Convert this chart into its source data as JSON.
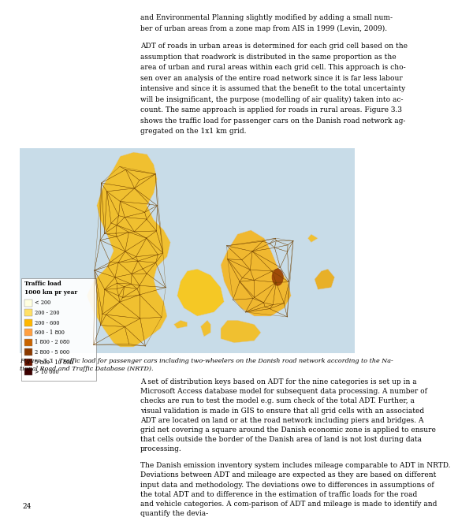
{
  "page_number": "24",
  "top_text_lines": [
    "and Environmental Planning slightly modified by adding a small num-",
    "ber of urban areas from a zone map from AIS in 1999 (Levin, 2009).",
    "",
    "ADT of roads in urban areas is determined for each grid cell based on the",
    "assumption that roadwork is distributed in the same proportion as the",
    "area of urban and rural areas within each grid cell. This approach is cho-",
    "sen over an analysis of the entire road network since it is far less labour",
    "intensive and since it is assumed that the benefit to the total uncertainty",
    "will be insignificant, the purpose (modelling of air quality) taken into ac-",
    "count. The same approach is applied for roads in rural areas. Figure 3.3",
    "shows the traffic load for passenger cars on the Danish road network ag-",
    "gregated on the 1x1 km grid."
  ],
  "legend_title1": "Traffic load",
  "legend_title2": "1000 km pr year",
  "legend_entries": [
    {
      "label": "< 200",
      "color": "#FFFFE0"
    },
    {
      "label": "200 - 200",
      "color": "#FFE066"
    },
    {
      "label": "200 - 600",
      "color": "#FFB700"
    },
    {
      "label": "600 - 1 800",
      "color": "#FFA040"
    },
    {
      "label": "1 800 - 2 080",
      "color": "#C86400"
    },
    {
      "label": "2 800 - 5 000",
      "color": "#8B3A00"
    },
    {
      "label": "5 800 - 10 800",
      "color": "#6B1500"
    },
    {
      "label": "> 10 000",
      "color": "#3D0000"
    }
  ],
  "figure_caption_line1": "Figure 3.3   Traffic load for passenger cars including two-wheelers on the Danish road network according to the Na-",
  "figure_caption_line2": "tional Road and Traffic Database (NRTD).",
  "bottom_para1": "A set of distribution keys based on ADT for the nine categories is set up in a Microsoft Access database model for subsequent data processing. A number of checks are run to test the model e.g. sum check of the total ADT. Further, a visual validation is made in GIS to ensure that all grid cells with an associated ADT are located on land or at the road network including piers and bridges. A grid net covering a square around the Danish economic zone is applied to ensure that cells outside the border of the Danish area of land is not lost during data processing.",
  "bottom_para2": "The Danish emission inventory system includes mileage comparable to ADT in NRTD. Deviations between ADT and mileage are expected as they are based on different input data and methodology. The deviations owe to differences in assumptions of the total ADT and to difference in the estimation of traffic loads for the road and vehicle categories. A com-parison of ADT and mileage is made to identify and quantify the devia-"
}
